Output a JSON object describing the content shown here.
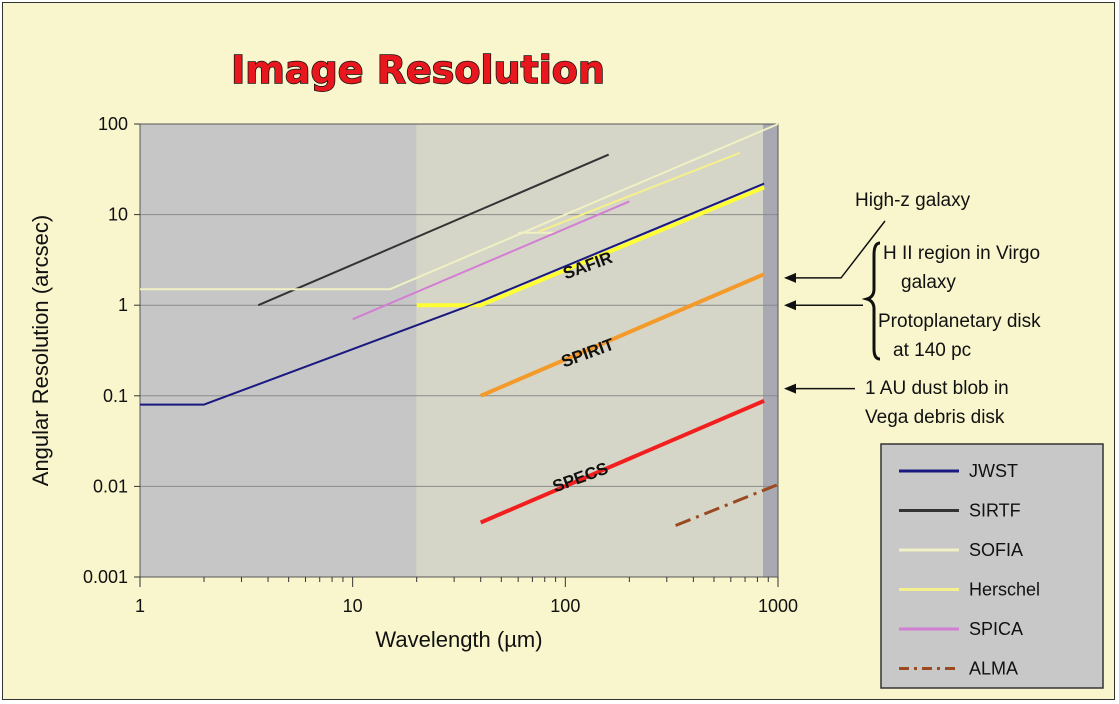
{
  "chart_data": {
    "type": "line",
    "title": "Image Resolution",
    "xlabel": "Wavelength (µm)",
    "ylabel": "Angular Resolution (arcsec)",
    "xscale": "log",
    "yscale": "log",
    "xlim": [
      1,
      1000
    ],
    "ylim": [
      0.001,
      100
    ],
    "x_ticks": [
      "1",
      "10",
      "100",
      "1000"
    ],
    "y_ticks": [
      "0.001",
      "0.01",
      "0.1",
      "1",
      "10",
      "100"
    ],
    "grid": "horizontal",
    "shaded_regions": [
      {
        "x_from": 1,
        "x_to": 20,
        "color": "#c6c6c6"
      },
      {
        "x_from": 20,
        "x_to": 850,
        "color": "#d6d6c8"
      },
      {
        "x_from": 850,
        "x_to": 1000,
        "color": "#a9a9b4"
      }
    ],
    "series": [
      {
        "name": "JWST",
        "color": "#1a1a80",
        "width": 2,
        "dash": "",
        "points": [
          [
            1,
            0.08
          ],
          [
            2,
            0.08
          ],
          [
            40,
            1.1
          ],
          [
            860,
            22
          ]
        ]
      },
      {
        "name": "SIRTF",
        "color": "#333333",
        "width": 2,
        "dash": "",
        "points": [
          [
            3.6,
            1.0
          ],
          [
            160,
            46
          ]
        ]
      },
      {
        "name": "SOFIA",
        "color": "#f0f0c4",
        "width": 2,
        "dash": "",
        "points": [
          [
            1,
            1.5
          ],
          [
            15,
            1.5
          ],
          [
            1000,
            100
          ]
        ]
      },
      {
        "name": "SOFIA",
        "color": "#f0f0c4",
        "width": 2,
        "dash": "",
        "points": [
          [
            60,
            6.3
          ],
          [
            90,
            6.3
          ]
        ]
      },
      {
        "name": "Herschel",
        "color": "#f5f08c",
        "width": 2,
        "dash": "",
        "points": [
          [
            75,
            6.5
          ],
          [
            660,
            48
          ]
        ]
      },
      {
        "name": "SPICA",
        "color": "#d27ed2",
        "width": 2,
        "dash": "",
        "points": [
          [
            10,
            0.7
          ],
          [
            200,
            14
          ]
        ]
      },
      {
        "name": "SAFIR",
        "color": "#ffff33",
        "width": 4,
        "dash": "",
        "points": [
          [
            20,
            1.0
          ],
          [
            40,
            1.0
          ],
          [
            860,
            20
          ]
        ]
      },
      {
        "name": "SPIRIT",
        "color": "#f39a2b",
        "width": 4,
        "dash": "",
        "points": [
          [
            40,
            0.1
          ],
          [
            860,
            2.2
          ]
        ]
      },
      {
        "name": "SPECS",
        "color": "#f21f1f",
        "width": 4,
        "dash": "",
        "points": [
          [
            40,
            0.004
          ],
          [
            860,
            0.088
          ]
        ]
      },
      {
        "name": "ALMA",
        "color": "#9a4a22",
        "width": 3,
        "dash": "16,6,3,6",
        "points": [
          [
            330,
            0.0037
          ],
          [
            1000,
            0.0105
          ]
        ]
      }
    ],
    "series_labels": [
      {
        "text": "SAFIR",
        "x": 130,
        "y": 2.4
      },
      {
        "text": "SPIRIT",
        "x": 130,
        "y": 0.26
      },
      {
        "text": "SPECS",
        "x": 120,
        "y": 0.011
      }
    ],
    "annotations": [
      {
        "text": "High-z galaxy",
        "arrow_to_y": 2.0
      },
      {
        "text": "H II region in Virgo",
        "line2": "galaxy"
      },
      {
        "text": "Protoplanetary disk",
        "line2": "at 140 pc",
        "arrow_to_y": 1.0
      },
      {
        "text": "1 AU dust blob in",
        "line2": "Vega debris disk",
        "arrow_to_y": 0.12
      }
    ],
    "legend": {
      "position": "bottom-right",
      "entries": [
        {
          "label": "JWST",
          "color": "#1a1a80",
          "dash": ""
        },
        {
          "label": "SIRTF",
          "color": "#333333",
          "dash": ""
        },
        {
          "label": "SOFIA",
          "color": "#f0f0c4",
          "dash": ""
        },
        {
          "label": "Herschel",
          "color": "#f5f08c",
          "dash": ""
        },
        {
          "label": "SPICA",
          "color": "#d27ed2",
          "dash": ""
        },
        {
          "label": "ALMA",
          "color": "#9a4a22",
          "dash": "10,5,3,5"
        }
      ]
    }
  }
}
